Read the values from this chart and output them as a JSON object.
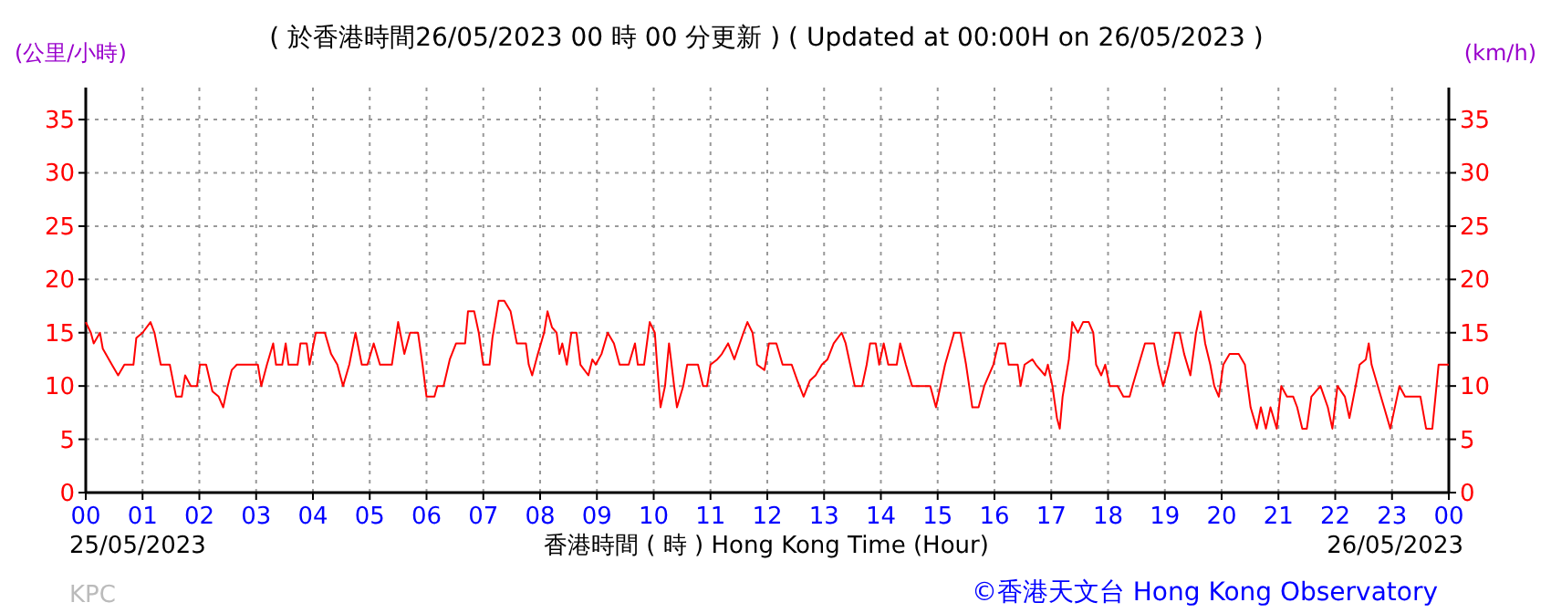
{
  "chart_data": {
    "type": "line",
    "title": "( 於香港時間26/05/2023 00 時 00 分更新 ) ( Updated at 00:00H on 26/05/2023 )",
    "ylabel": "(公里/小時)",
    "y2label": "(km/h)",
    "xlabel": "香港時間 ( 時 ) Hong Kong Time (Hour)",
    "annotations": [
      "25/05/2023",
      "26/05/2023",
      "KPC",
      "©香港天文台 Hong Kong Observatory"
    ],
    "xlim": [
      0,
      24
    ],
    "xticks": [
      {
        "value": 0,
        "label": "00"
      },
      {
        "value": 1,
        "label": "01"
      },
      {
        "value": 2,
        "label": "02"
      },
      {
        "value": 3,
        "label": "03"
      },
      {
        "value": 4,
        "label": "04"
      },
      {
        "value": 5,
        "label": "05"
      },
      {
        "value": 6,
        "label": "06"
      },
      {
        "value": 7,
        "label": "07"
      },
      {
        "value": 8,
        "label": "08"
      },
      {
        "value": 9,
        "label": "09"
      },
      {
        "value": 10,
        "label": "10"
      },
      {
        "value": 11,
        "label": "11"
      },
      {
        "value": 12,
        "label": "12"
      },
      {
        "value": 13,
        "label": "13"
      },
      {
        "value": 14,
        "label": "14"
      },
      {
        "value": 15,
        "label": "15"
      },
      {
        "value": 16,
        "label": "16"
      },
      {
        "value": 17,
        "label": "17"
      },
      {
        "value": 18,
        "label": "18"
      },
      {
        "value": 19,
        "label": "19"
      },
      {
        "value": 20,
        "label": "20"
      },
      {
        "value": 21,
        "label": "21"
      },
      {
        "value": 22,
        "label": "22"
      },
      {
        "value": 23,
        "label": "23"
      },
      {
        "value": 24,
        "label": "00"
      }
    ],
    "ylim": [
      0,
      38
    ],
    "yticks": [
      0,
      5,
      10,
      15,
      20,
      25,
      30,
      35
    ],
    "y2lim": [
      0,
      38
    ],
    "y2ticks": [
      0,
      5,
      10,
      15,
      20,
      25,
      30,
      35
    ],
    "grid": true,
    "marker": "none",
    "line_style": "solid",
    "series": [
      {
        "color": "#ff0000",
        "x": [
          0,
          0.09,
          0.14,
          0.25,
          0.3,
          0.46,
          0.57,
          0.68,
          0.84,
          0.89,
          1.0,
          1.14,
          1.21,
          1.32,
          1.48,
          1.59,
          1.69,
          1.75,
          1.85,
          1.96,
          2.01,
          2.12,
          2.23,
          2.34,
          2.42,
          2.5,
          2.57,
          2.66,
          2.77,
          3.03,
          3.09,
          3.19,
          3.3,
          3.35,
          3.46,
          3.52,
          3.57,
          3.73,
          3.78,
          3.89,
          3.94,
          4.05,
          4.21,
          4.32,
          4.43,
          4.53,
          4.64,
          4.75,
          4.86,
          4.96,
          5.07,
          5.18,
          5.39,
          5.5,
          5.61,
          5.71,
          5.85,
          5.93,
          6.0,
          6.14,
          6.19,
          6.3,
          6.41,
          6.52,
          6.68,
          6.73,
          6.84,
          6.92,
          7.0,
          7.11,
          7.16,
          7.27,
          7.37,
          7.48,
          7.59,
          7.75,
          7.8,
          7.86,
          7.96,
          8.07,
          8.13,
          8.21,
          8.29,
          8.34,
          8.39,
          8.47,
          8.55,
          8.64,
          8.71,
          8.85,
          8.92,
          8.98,
          9.08,
          9.19,
          9.3,
          9.4,
          9.56,
          9.67,
          9.72,
          9.83,
          9.93,
          10.02,
          10.06,
          10.12,
          10.2,
          10.27,
          10.36,
          10.41,
          10.52,
          10.59,
          10.78,
          10.87,
          10.94,
          11.0,
          11.12,
          11.2,
          11.31,
          11.42,
          11.58,
          11.65,
          11.74,
          11.82,
          11.95,
          12.03,
          12.16,
          12.27,
          12.43,
          12.53,
          12.64,
          12.75,
          12.85,
          12.96,
          13.06,
          13.17,
          13.31,
          13.38,
          13.46,
          13.54,
          13.67,
          13.75,
          13.81,
          13.91,
          13.97,
          14.05,
          14.13,
          14.28,
          14.34,
          14.44,
          14.55,
          14.76,
          14.87,
          14.97,
          15.13,
          15.29,
          15.4,
          15.5,
          15.61,
          15.72,
          15.82,
          15.98,
          16.07,
          16.19,
          16.25,
          16.41,
          16.46,
          16.53,
          16.67,
          16.73,
          16.89,
          16.94,
          17.02,
          17.1,
          17.15,
          17.2,
          17.31,
          17.37,
          17.47,
          17.56,
          17.66,
          17.74,
          17.79,
          17.88,
          17.95,
          18.03,
          18.17,
          18.27,
          18.38,
          18.43,
          18.54,
          18.65,
          18.81,
          18.88,
          18.97,
          19.07,
          19.18,
          19.26,
          19.34,
          19.45,
          19.55,
          19.63,
          19.71,
          19.8,
          19.87,
          19.95,
          20.03,
          20.14,
          20.3,
          20.41,
          20.51,
          20.62,
          20.69,
          20.78,
          20.86,
          20.97,
          21.05,
          21.15,
          21.26,
          21.33,
          21.42,
          21.5,
          21.58,
          21.74,
          21.87,
          21.95,
          22.04,
          22.17,
          22.25,
          22.36,
          22.43,
          22.54,
          22.59,
          22.64,
          22.75,
          22.86,
          22.97,
          23.13,
          23.23,
          23.5,
          23.6,
          23.71,
          23.82,
          23.96,
          24
        ],
        "values": [
          16,
          15,
          14,
          15,
          13.5,
          12,
          11,
          12,
          12,
          14.5,
          15,
          16,
          15,
          12,
          12,
          9,
          9,
          11,
          10,
          10,
          12,
          12,
          9.5,
          9,
          8,
          10,
          11.5,
          12,
          12,
          12,
          10,
          12,
          14,
          12,
          12,
          14,
          12,
          12,
          14,
          14,
          12,
          15,
          15,
          13,
          12,
          10,
          12,
          15,
          12,
          12,
          14,
          12,
          12,
          16,
          13,
          15,
          15,
          12,
          9,
          9,
          10,
          10,
          12.5,
          14,
          14,
          17,
          17,
          15,
          12,
          12,
          14.5,
          18,
          18,
          17,
          14,
          14,
          12,
          11,
          13,
          15,
          17,
          15.5,
          15,
          13,
          14,
          12,
          15,
          15,
          12,
          11,
          12.5,
          12,
          13,
          15,
          14,
          12,
          12,
          14,
          12,
          12,
          16,
          15,
          12,
          8,
          10,
          14,
          10,
          8,
          10,
          12,
          12,
          10,
          10,
          12,
          12.5,
          13,
          14,
          12.5,
          15,
          16,
          15,
          12,
          11.5,
          14,
          14,
          12,
          12,
          10.5,
          9,
          10.5,
          11,
          12,
          12.5,
          14,
          15,
          14,
          12,
          10,
          10,
          12,
          14,
          14,
          12,
          14,
          12,
          12,
          14,
          12,
          10,
          10,
          10,
          8,
          12,
          15,
          15,
          12,
          8,
          8,
          10,
          12,
          14,
          14,
          12,
          12,
          10,
          12,
          12.5,
          12,
          11,
          12,
          10,
          7,
          6,
          9,
          12.5,
          16,
          15,
          16,
          16,
          15,
          12,
          11,
          12,
          10,
          10,
          9,
          9,
          10,
          12,
          14,
          14,
          12,
          10,
          12,
          15,
          15,
          13,
          11,
          15,
          17,
          14,
          12,
          10,
          9,
          12,
          13,
          13,
          12,
          8,
          6,
          8,
          6,
          8,
          6,
          10,
          9,
          9,
          8,
          6,
          6,
          9,
          10,
          8,
          6,
          10,
          9,
          7,
          10,
          12,
          12.5,
          14,
          12,
          10,
          8,
          6,
          10,
          9,
          9,
          6,
          6,
          12,
          12,
          12
        ]
      }
    ]
  }
}
